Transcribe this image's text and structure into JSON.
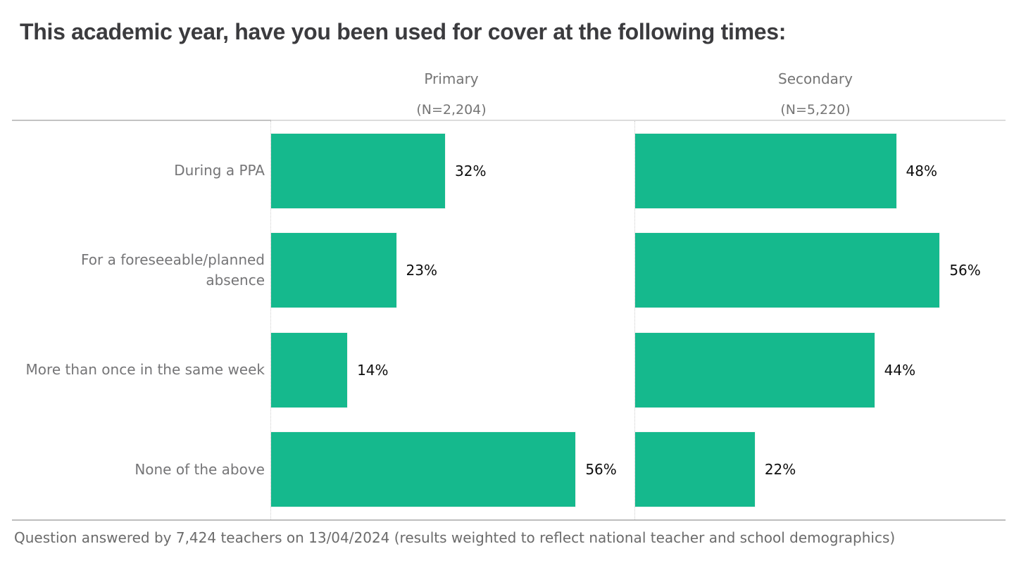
{
  "title": "This academic year, have you been used for cover at the following times:",
  "footer": "Question answered by 7,424 teachers on 13/04/2024 (results weighted to reflect national teacher and school demographics)",
  "chart_data": {
    "type": "bar",
    "orientation": "horizontal",
    "title": "This academic year, have you been used for cover at the following times:",
    "categories": [
      "During a PPA",
      "For a foreseeable/planned\nabsence",
      "More than once in the same week",
      "None of the above"
    ],
    "series": [
      {
        "name": "Primary",
        "n_label": "(N=2,204)",
        "values": [
          32,
          23,
          14,
          56
        ]
      },
      {
        "name": "Secondary",
        "n_label": "(N=5,220)",
        "values": [
          48,
          56,
          44,
          22
        ]
      }
    ],
    "value_suffix": "%",
    "xlim": [
      0,
      60
    ],
    "grid": false,
    "bar_color": "#15b98d",
    "legend_position": "column-headers"
  }
}
